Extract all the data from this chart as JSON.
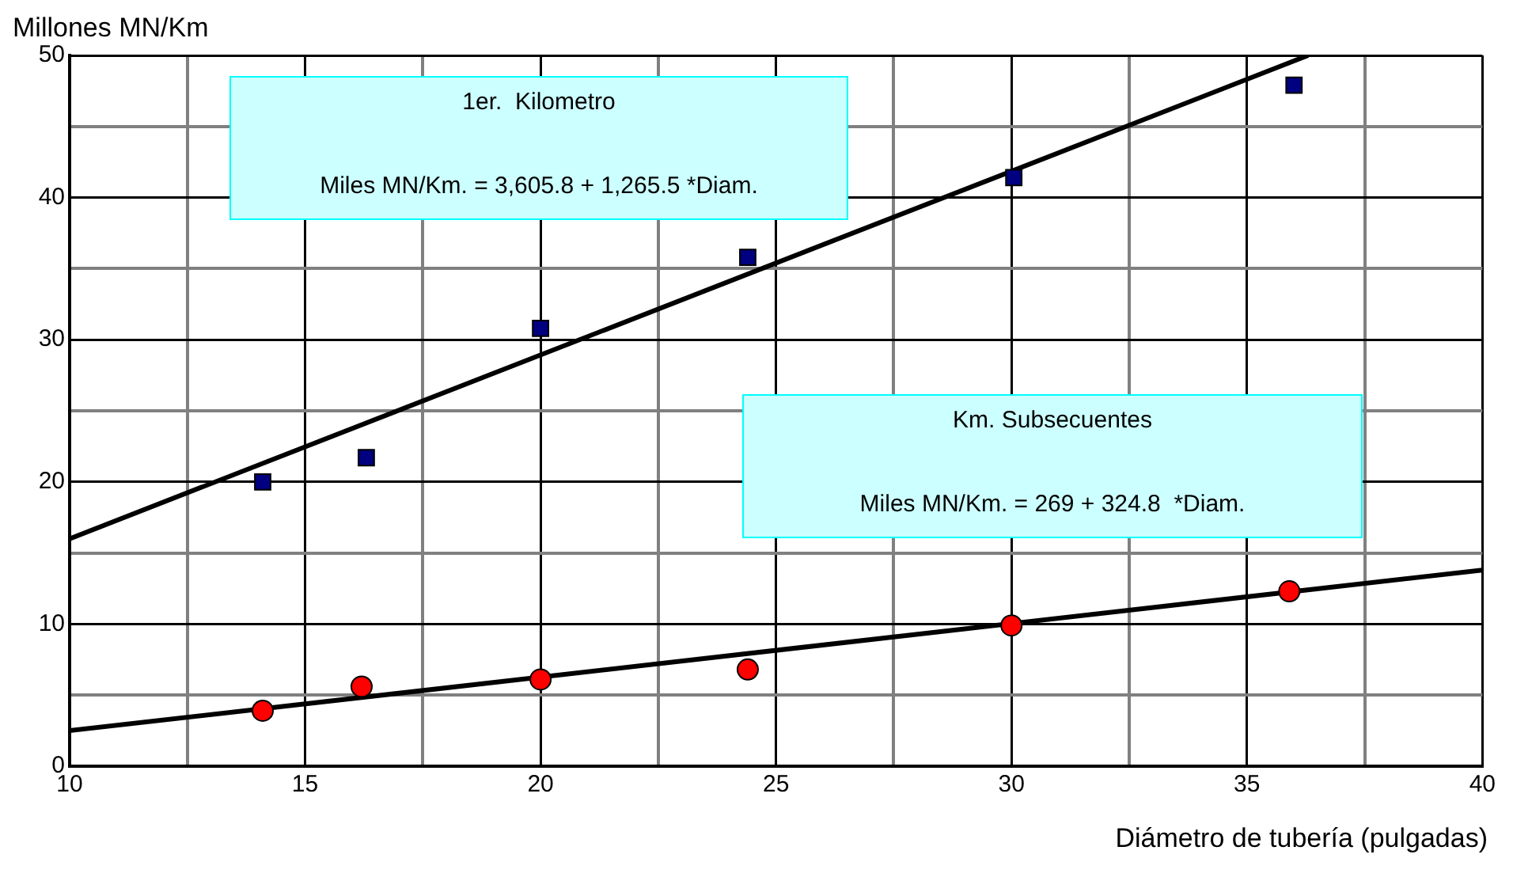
{
  "chart_data": {
    "type": "scatter",
    "ylabel": "Millones MN/Km",
    "xlabel": "Diámetro de tubería (pulgadas)",
    "xlim": [
      10,
      40
    ],
    "xticks": [
      10,
      {
        "value": 12.5,
        "label": null
      },
      15,
      {
        "value": 17.5,
        "label": null
      },
      20,
      {
        "value": 22.5,
        "label": null
      },
      25,
      {
        "value": 27.5,
        "label": null
      },
      30,
      {
        "value": 32.5,
        "label": null
      },
      35,
      {
        "value": 37.5,
        "label": null
      },
      40
    ],
    "ylim": [
      0,
      50
    ],
    "yticks": [
      0,
      {
        "value": 5,
        "label": null
      },
      10,
      {
        "value": 15,
        "label": null
      },
      20,
      {
        "value": 25,
        "label": null
      },
      30,
      {
        "value": 35,
        "label": null
      },
      40,
      {
        "value": 45,
        "label": null
      },
      50
    ],
    "grid": true,
    "legend": false,
    "series": [
      {
        "type": "line",
        "color": "#000000",
        "marker": "none",
        "x": [
          10,
          36.3
        ],
        "values": [
          16.0,
          50
        ]
      },
      {
        "type": "line",
        "color": "#000000",
        "marker": "none",
        "x": [
          10,
          40
        ],
        "values": [
          2.5,
          13.8
        ]
      },
      {
        "type": "scatter",
        "color": "#000080",
        "marker": "square",
        "x": [
          14.1,
          16.3,
          20.0,
          24.4,
          30.05,
          36.0
        ],
        "values": [
          20,
          21.7,
          30.8,
          35.8,
          41.4,
          47.9
        ]
      },
      {
        "type": "scatter",
        "color": "#ff0000",
        "marker": "circle",
        "x": [
          14.1,
          16.2,
          20.0,
          24.4,
          30.0,
          35.9
        ],
        "values": [
          3.9,
          5.6,
          6.1,
          6.8,
          9.9,
          12.3
        ]
      }
    ],
    "annotations": [
      "1er.  Kilometro",
      "Miles MN/Km. = 3,605.8 + 1,265.5 *Diam.",
      "Km. Subsecuentes",
      "Miles MN/Km. = 269 + 324.8  *Diam."
    ]
  }
}
